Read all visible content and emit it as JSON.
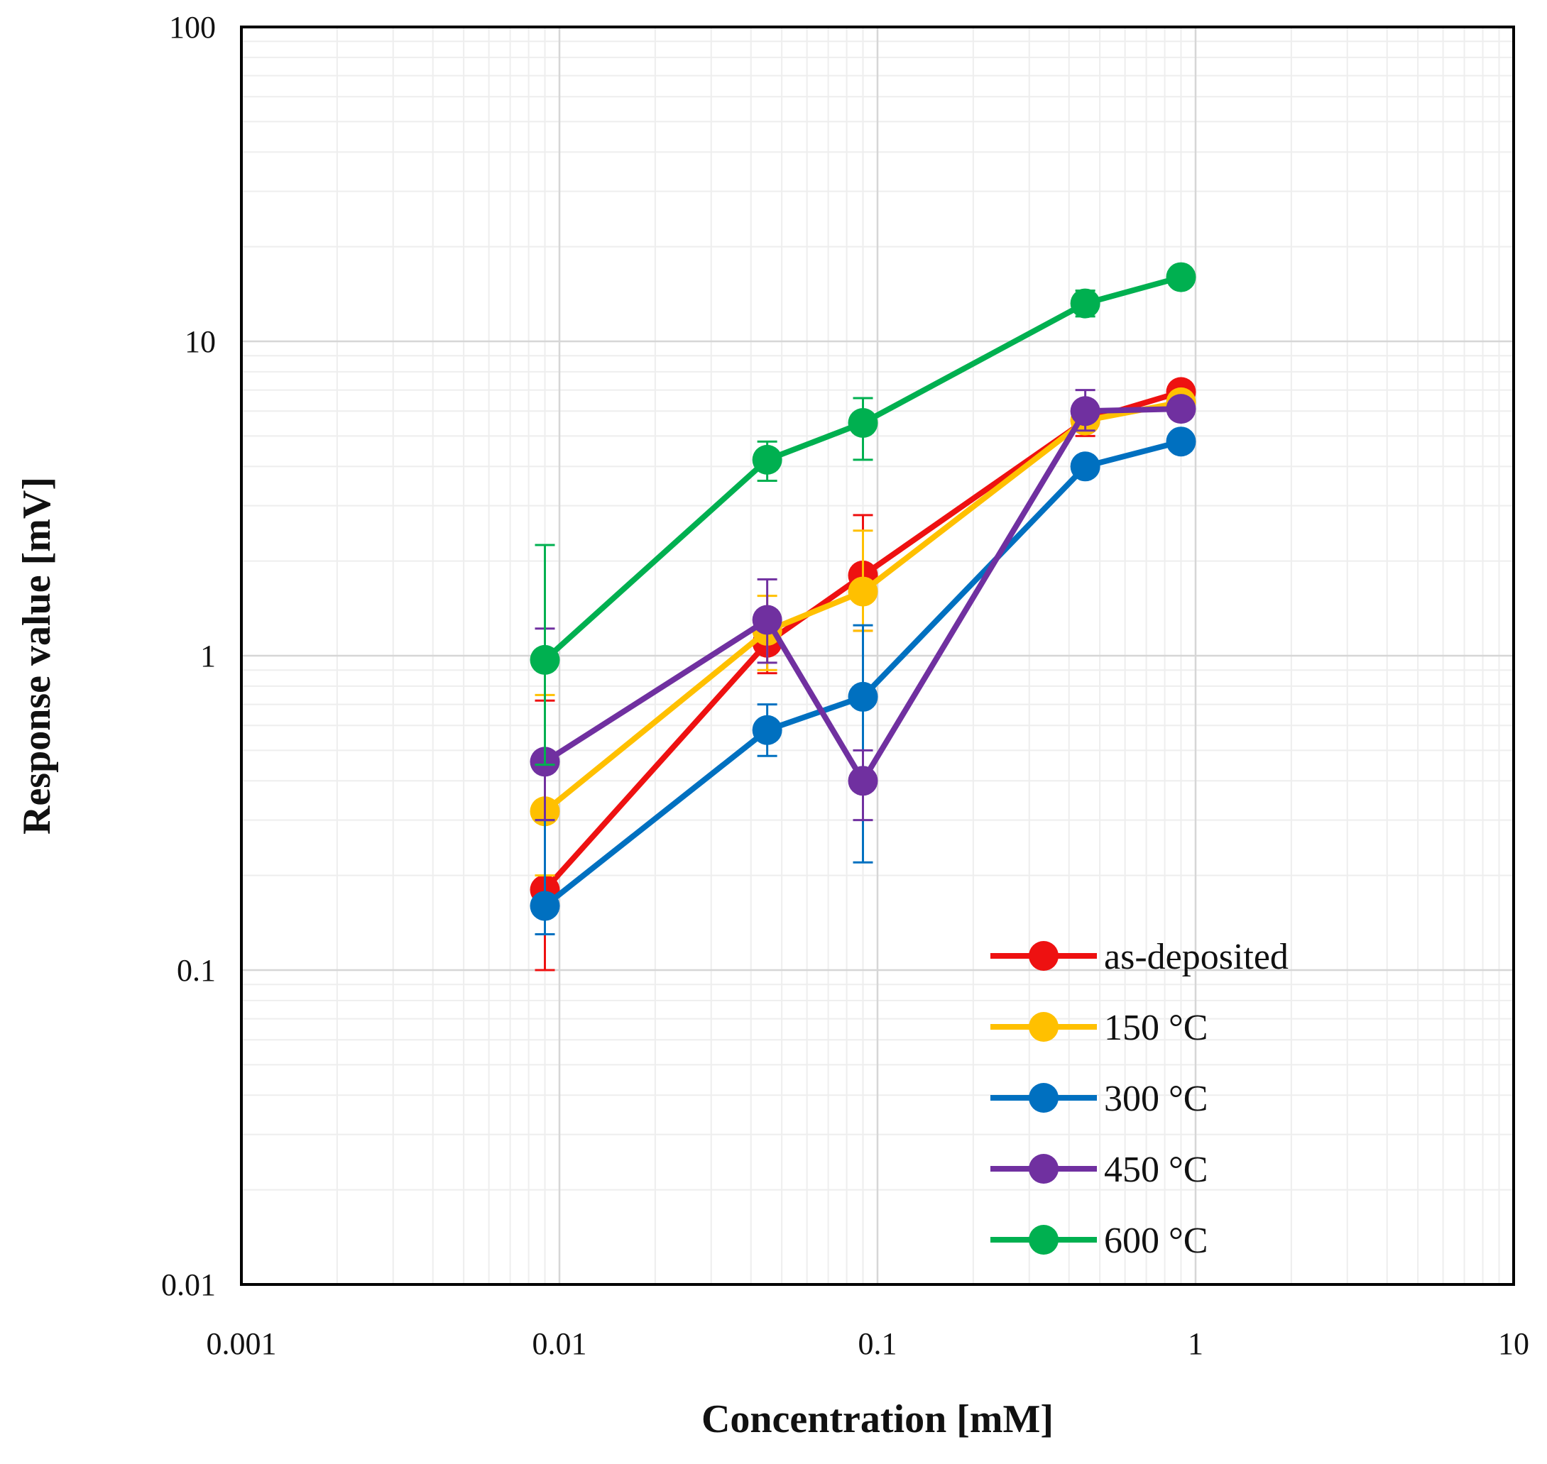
{
  "chart_data": {
    "type": "line",
    "xscale": "log",
    "yscale": "log",
    "xlabel": "Concentration [mM]",
    "ylabel": "Response value [mV]",
    "xlim": [
      0.001,
      10
    ],
    "ylim": [
      0.01,
      100
    ],
    "grid": true,
    "legend_position": "bottom-right",
    "x_ticks": [
      {
        "value": 0.001,
        "label": "0.001"
      },
      {
        "value": 0.01,
        "label": "0.01"
      },
      {
        "value": 0.1,
        "label": "0.1"
      },
      {
        "value": 1,
        "label": "1"
      },
      {
        "value": 10,
        "label": "10"
      }
    ],
    "y_ticks": [
      {
        "value": 0.01,
        "label": "0.01"
      },
      {
        "value": 0.1,
        "label": "0.1"
      },
      {
        "value": 1,
        "label": "1"
      },
      {
        "value": 10,
        "label": "10"
      },
      {
        "value": 100,
        "label": "100"
      }
    ],
    "x": [
      0.009,
      0.045,
      0.09,
      0.45,
      0.9
    ],
    "series": [
      {
        "name": "as-deposited",
        "color": "#ee1111",
        "values": [
          0.18,
          1.1,
          1.8,
          5.6,
          6.9
        ],
        "err_low": [
          0.1,
          0.88,
          1.2,
          5.0,
          6.5
        ],
        "err_high": [
          0.72,
          1.35,
          2.8,
          6.2,
          7.3
        ]
      },
      {
        "name": "150 °C",
        "color": "#ffc000",
        "values": [
          0.32,
          1.2,
          1.6,
          5.6,
          6.4
        ],
        "err_low": [
          0.2,
          0.9,
          1.2,
          5.2,
          6.0
        ],
        "err_high": [
          0.75,
          1.55,
          2.5,
          6.0,
          6.8
        ]
      },
      {
        "name": "300 °C",
        "color": "#0070c0",
        "values": [
          0.16,
          0.58,
          0.74,
          4.0,
          4.8
        ],
        "err_low": [
          0.13,
          0.48,
          0.22,
          3.8,
          4.6
        ],
        "err_high": [
          0.3,
          0.7,
          1.25,
          4.2,
          5.0
        ]
      },
      {
        "name": "450 °C",
        "color": "#7030a0",
        "values": [
          0.46,
          1.3,
          0.4,
          6.0,
          6.1
        ],
        "err_low": [
          0.3,
          0.95,
          0.3,
          5.2,
          5.9
        ],
        "err_high": [
          1.22,
          1.75,
          0.5,
          7.0,
          6.3
        ]
      },
      {
        "name": "600 °C",
        "color": "#00b050",
        "values": [
          0.97,
          4.2,
          5.5,
          13.2,
          16.0
        ],
        "err_low": [
          0.45,
          3.6,
          4.2,
          12.0,
          15.2
        ],
        "err_high": [
          2.25,
          4.8,
          6.6,
          14.5,
          16.8
        ]
      }
    ]
  }
}
